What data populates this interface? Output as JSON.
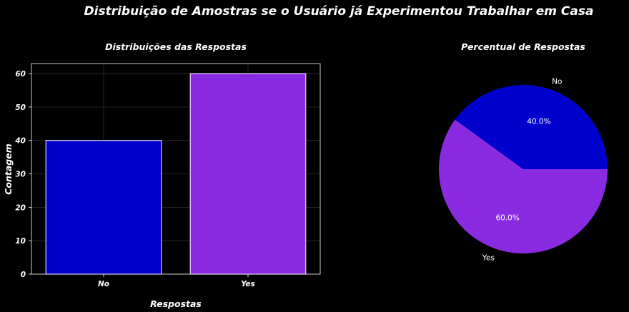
{
  "figure": {
    "suptitle": "Distribuição de Amostras se o Usuário já Experimentou Trabalhar em Casa",
    "background": "#000000"
  },
  "chart_data": [
    {
      "type": "bar",
      "title": "Distribuições das Respostas",
      "xlabel": "Respostas",
      "ylabel": "Contagem",
      "categories": [
        "No",
        "Yes"
      ],
      "values": [
        40,
        60
      ],
      "colors": [
        "#0000CD",
        "#8A2BE2"
      ],
      "edgecolor": "#FFFFFF",
      "ylim": [
        0,
        63
      ],
      "yticks": [
        0,
        10,
        20,
        30,
        40,
        50,
        60
      ],
      "grid": true
    },
    {
      "type": "pie",
      "title": "Percentual de Respostas",
      "labels": [
        "No",
        "Yes"
      ],
      "values": [
        40,
        60
      ],
      "pct_labels": [
        "40.0%",
        "60.0%"
      ],
      "colors": [
        "#0000CD",
        "#8A2BE2"
      ]
    }
  ]
}
